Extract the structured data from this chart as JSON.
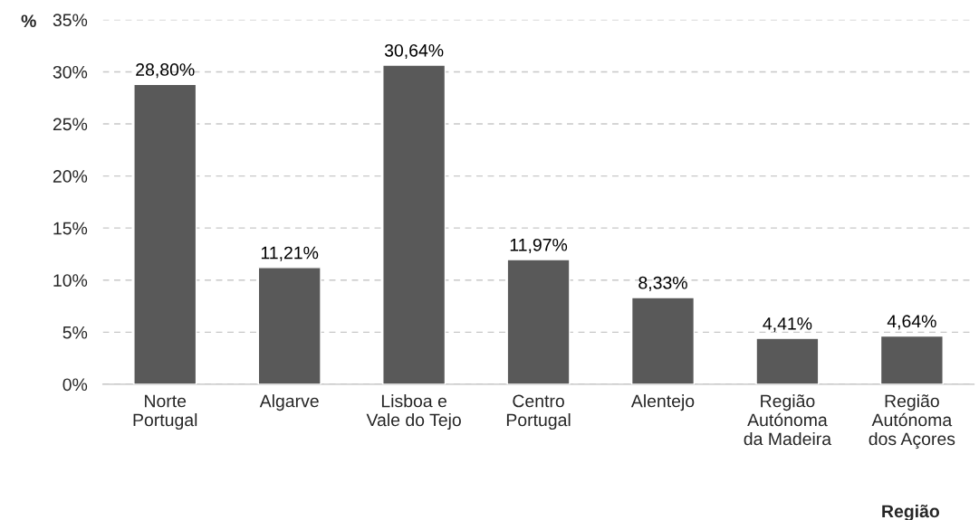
{
  "chart_data": {
    "type": "bar",
    "categories": [
      "Norte\nPortugal",
      "Algarve",
      "Lisboa e\nVale do Tejo",
      "Centro\nPortugal",
      "Alentejo",
      "Região\nAutónoma\nda Madeira",
      "Região\nAutónoma\ndos Açores"
    ],
    "values": [
      28.8,
      11.21,
      30.64,
      11.97,
      8.33,
      4.41,
      4.64
    ],
    "value_labels": [
      "28,80%",
      "11,21%",
      "30,64%",
      "11,97%",
      "8,33%",
      "4,41%",
      "4,64%"
    ],
    "color": "#595959",
    "ylabel": "%",
    "xlabel": "Região",
    "ylim": [
      0,
      35
    ],
    "yticks": [
      {
        "value": 0,
        "label": "0%"
      },
      {
        "value": 5,
        "label": "5%"
      },
      {
        "value": 10,
        "label": "10%"
      },
      {
        "value": 15,
        "label": "15%"
      },
      {
        "value": 20,
        "label": "20%"
      },
      {
        "value": 25,
        "label": "25%"
      },
      {
        "value": 30,
        "label": "30%"
      },
      {
        "value": 35,
        "label": "35%"
      }
    ],
    "grid": "y",
    "legend": false
  }
}
